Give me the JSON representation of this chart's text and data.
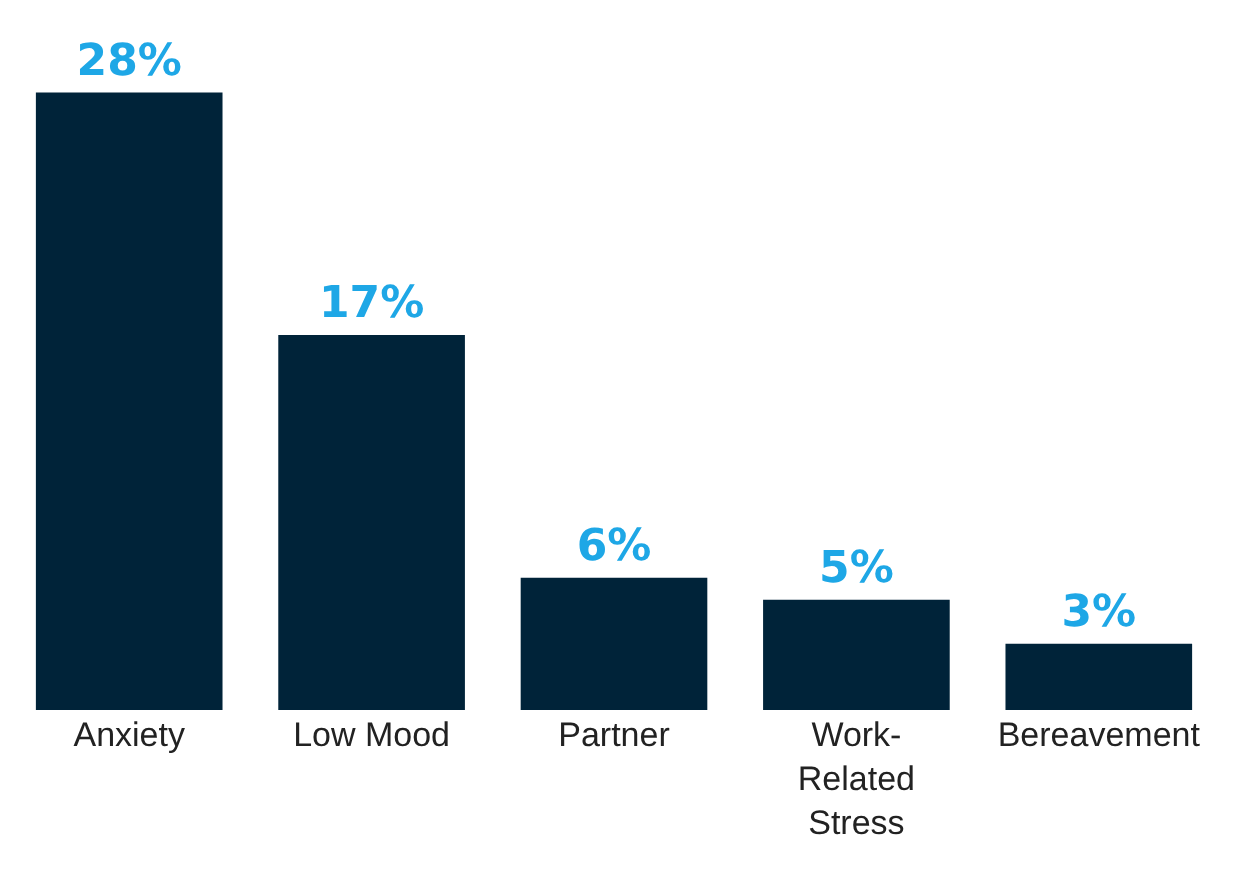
{
  "chart_data": {
    "type": "bar",
    "categories": [
      "Anxiety",
      "Low Mood",
      "Partner",
      "Work-Related Stress",
      "Bereavement"
    ],
    "values": [
      28,
      17,
      6,
      5,
      3
    ],
    "value_labels": [
      "28%",
      "17%",
      "6%",
      "5%",
      "3%"
    ],
    "color": "#002339",
    "tick_labels": "x",
    "legend": false
  }
}
